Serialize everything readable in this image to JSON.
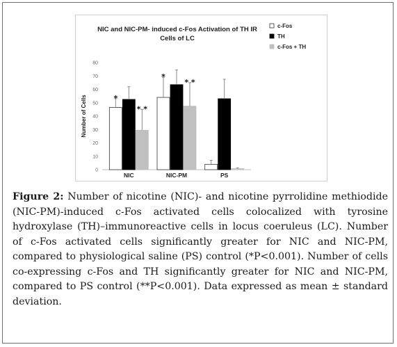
{
  "chart_data": {
    "type": "bar",
    "title_lines": [
      "NIC and NIC-PM- induced c-Fos Activation of TH IR",
      "Cells of LC"
    ],
    "ylabel": "Number of Cells",
    "xlabel": "",
    "ylim": [
      0,
      80
    ],
    "yticks": [
      0,
      10,
      20,
      30,
      40,
      50,
      60,
      70,
      80
    ],
    "grid": false,
    "legend_position": "top-right",
    "categories": [
      "NIC",
      "NIC-PM",
      "PS"
    ],
    "series": [
      {
        "name": "c-Fos",
        "values": [
          46.5,
          54,
          4
        ],
        "errors": [
          6.5,
          15,
          3
        ],
        "color": "#ffffff",
        "stroke": "#333333"
      },
      {
        "name": "TH",
        "values": [
          52.5,
          63.5,
          53
        ],
        "errors": [
          9.5,
          11,
          14.5
        ],
        "color": "#000000",
        "stroke": "#000000"
      },
      {
        "name": "c-Fos + TH",
        "values": [
          29.5,
          47.5,
          0.8
        ],
        "errors": [
          15.5,
          17.5,
          0.6
        ],
        "color": "#c0c0c0",
        "stroke": "#c0c0c0"
      }
    ],
    "annotations": [
      {
        "category": "NIC",
        "series": "c-Fos",
        "text": "*"
      },
      {
        "category": "NIC",
        "series": "c-Fos + TH",
        "text": "* *"
      },
      {
        "category": "NIC-PM",
        "series": "c-Fos",
        "text": "*"
      },
      {
        "category": "NIC-PM",
        "series": "c-Fos + TH",
        "text": "* *"
      }
    ]
  },
  "caption": {
    "label": "Figure 2:",
    "text": " Number of nicotine (NIC)- and nicotine pyrrolidine methiodide (NIC-PM)-induced c-Fos activated cells colocalized with tyrosine hydroxylase (TH)–immunoreactive cells in locus coeruleus (LC). Number of c-Fos activated cells significantly greater for NIC and NIC-PM, compared to physiological saline (PS) control (*P<0.001). Number of cells co-expressing c-Fos and TH significantly greater for NIC and NIC-PM, compared to PS control (**P<0.001). Data expressed as mean ± standard deviation."
  }
}
